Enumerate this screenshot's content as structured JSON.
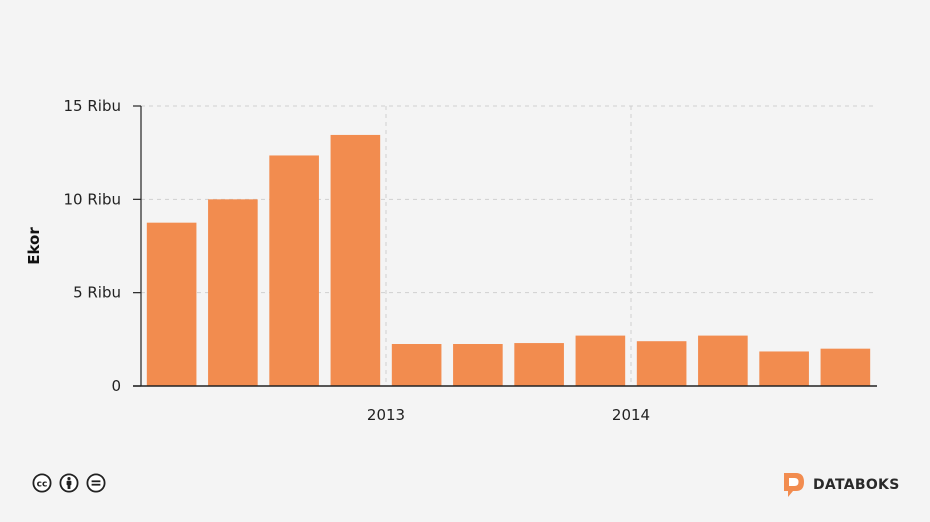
{
  "chart_data": {
    "type": "bar",
    "ylabel": "Ekor",
    "ylim": [
      0,
      15000
    ],
    "yticks": [
      {
        "value": 0,
        "label": "0"
      },
      {
        "value": 5000,
        "label": "5 Ribu"
      },
      {
        "value": 10000,
        "label": "10 Ribu"
      },
      {
        "value": 15000,
        "label": "15 Ribu"
      }
    ],
    "xtick_labels": [
      {
        "label": "2013",
        "after_bar_index": 3
      },
      {
        "label": "2014",
        "after_bar_index": 7
      }
    ],
    "values": [
      8750,
      10000,
      12350,
      13450,
      2250,
      2250,
      2300,
      2700,
      2400,
      2700,
      1850,
      2000
    ],
    "grid": true,
    "bar_color": "#f28c4f"
  },
  "footer": {
    "license_icons": [
      "cc-icon",
      "by-icon",
      "nd-icon"
    ],
    "brand": "DATABOKS",
    "brand_color": "#f28c4f"
  }
}
